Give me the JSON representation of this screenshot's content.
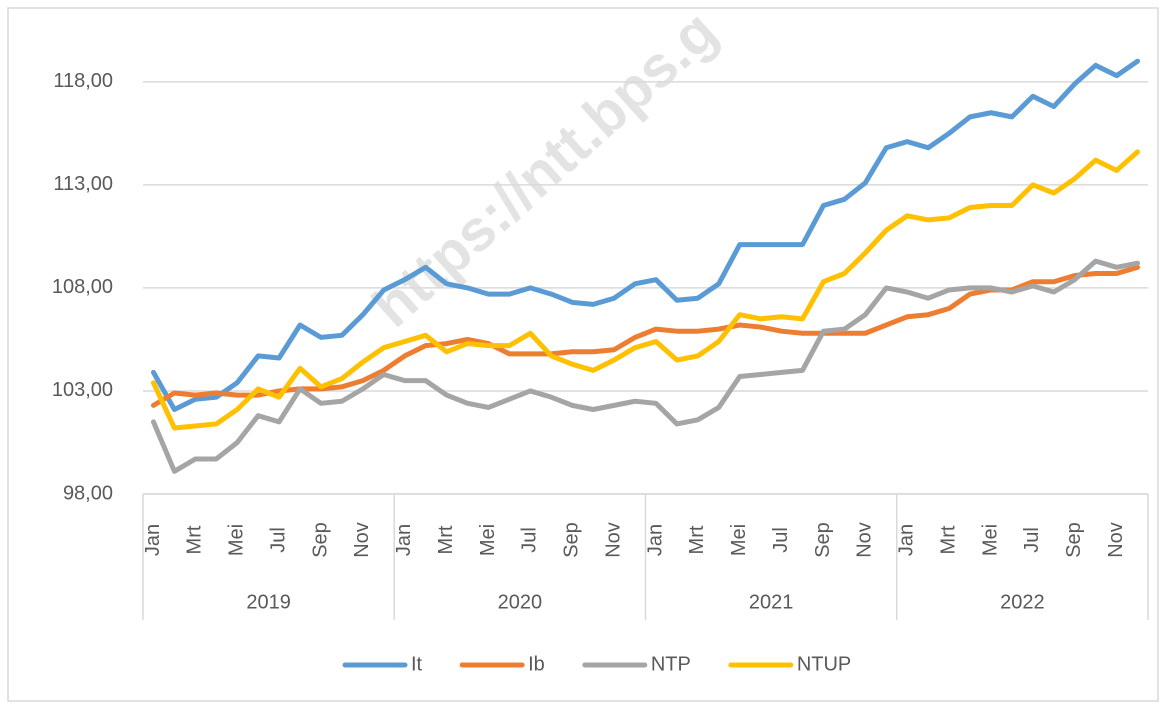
{
  "chart_data": {
    "type": "line",
    "watermark": "https://ntt.bps.g",
    "categories": [
      "Jan",
      null,
      "Mrt",
      null,
      "Mei",
      null,
      "Jul",
      null,
      "Sep",
      null,
      "Nov",
      null,
      "Jan",
      null,
      "Mrt",
      null,
      "Mei",
      null,
      "Jul",
      null,
      "Sep",
      null,
      "Nov",
      null,
      "Jan",
      null,
      "Mrt",
      null,
      "Mei",
      null,
      "Jul",
      null,
      "Sep",
      null,
      "Nov",
      null,
      "Jan",
      null,
      "Mrt",
      null,
      "Mei",
      null,
      "Jul",
      null,
      "Sep",
      null,
      "Nov",
      null
    ],
    "years": [
      "2019",
      "2020",
      "2021",
      "2022"
    ],
    "series": [
      {
        "name": "It",
        "color": "#5b9bd5",
        "values": [
          103.9,
          102.1,
          102.6,
          102.7,
          103.4,
          104.7,
          104.6,
          106.2,
          105.6,
          105.7,
          106.7,
          107.9,
          108.4,
          109.0,
          108.2,
          108.0,
          107.7,
          107.7,
          108.0,
          107.7,
          107.3,
          107.2,
          107.5,
          108.2,
          108.4,
          107.4,
          107.5,
          108.2,
          110.1,
          110.1,
          110.1,
          110.1,
          112.0,
          112.3,
          113.1,
          114.8,
          115.1,
          114.8,
          115.5,
          116.3,
          116.5,
          116.3,
          117.3,
          116.8,
          117.9,
          118.8,
          118.3,
          119.0
        ]
      },
      {
        "name": "Ib",
        "color": "#ed7d31",
        "values": [
          102.3,
          102.9,
          102.8,
          102.9,
          102.8,
          102.8,
          103.0,
          103.1,
          103.1,
          103.2,
          103.5,
          104.0,
          104.7,
          105.2,
          105.3,
          105.5,
          105.3,
          104.8,
          104.8,
          104.8,
          104.9,
          104.9,
          105.0,
          105.6,
          106.0,
          105.9,
          105.9,
          106.0,
          106.2,
          106.1,
          105.9,
          105.8,
          105.8,
          105.8,
          105.8,
          106.2,
          106.6,
          106.7,
          107.0,
          107.7,
          107.9,
          107.9,
          108.3,
          108.3,
          108.6,
          108.7,
          108.7,
          109.0
        ]
      },
      {
        "name": "NTP",
        "color": "#a5a5a5",
        "values": [
          101.5,
          99.1,
          99.7,
          99.7,
          100.5,
          101.8,
          101.5,
          103.1,
          102.4,
          102.5,
          103.1,
          103.8,
          103.5,
          103.5,
          102.8,
          102.4,
          102.2,
          102.6,
          103.0,
          102.7,
          102.3,
          102.1,
          102.3,
          102.5,
          102.4,
          101.4,
          101.6,
          102.2,
          103.7,
          103.8,
          103.9,
          104.0,
          105.9,
          106.0,
          106.7,
          108.0,
          107.8,
          107.5,
          107.9,
          108.0,
          108.0,
          107.8,
          108.1,
          107.8,
          108.4,
          109.3,
          109.0,
          109.2
        ]
      },
      {
        "name": "NTUP",
        "color": "#ffc000",
        "values": [
          103.4,
          101.2,
          101.3,
          101.4,
          102.1,
          103.1,
          102.7,
          104.1,
          103.2,
          103.6,
          104.4,
          105.1,
          105.4,
          105.7,
          104.9,
          105.3,
          105.2,
          105.2,
          105.8,
          104.7,
          104.3,
          104.0,
          104.5,
          105.1,
          105.4,
          104.5,
          104.7,
          105.4,
          106.7,
          106.5,
          106.6,
          106.5,
          108.3,
          108.7,
          109.7,
          110.8,
          111.5,
          111.3,
          111.4,
          111.9,
          112.0,
          112.0,
          113.0,
          112.6,
          113.3,
          114.2,
          113.7,
          114.6
        ]
      }
    ],
    "ylim": [
      98,
      121
    ],
    "yticks": [
      {
        "value": 98,
        "label": "98,00"
      },
      {
        "value": 103,
        "label": "103,00"
      },
      {
        "value": 108,
        "label": "108,00"
      },
      {
        "value": 113,
        "label": "113,00"
      },
      {
        "value": 118,
        "label": "118,00"
      }
    ],
    "grid": true,
    "legend": "bottom"
  }
}
